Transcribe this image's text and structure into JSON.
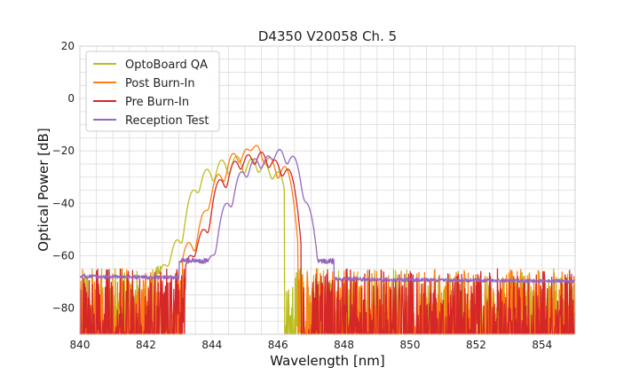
{
  "chart_data": {
    "type": "line",
    "title": "D4350 V20058 Ch. 5",
    "xlabel": "Wavelength [nm]",
    "ylabel": "Optical Power [dB]",
    "xlim": [
      840,
      855
    ],
    "ylim": [
      -90,
      20
    ],
    "xticks": [
      840,
      842,
      844,
      846,
      848,
      850,
      852,
      854
    ],
    "yticks": [
      20,
      0,
      -20,
      -40,
      -60,
      -80
    ],
    "grid": true,
    "legend_position": "top-left",
    "series": [
      {
        "name": "OptoBoard QA",
        "color": "#bcbd22",
        "noise_floor": -90,
        "peaks": [
          {
            "x": 842.55,
            "y": -63.5
          },
          {
            "x": 842.95,
            "y": -54
          },
          {
            "x": 843.45,
            "y": -35
          },
          {
            "x": 843.85,
            "y": -27
          },
          {
            "x": 844.3,
            "y": -23.5
          },
          {
            "x": 844.75,
            "y": -22
          },
          {
            "x": 845.2,
            "y": -23
          },
          {
            "x": 845.6,
            "y": -25
          },
          {
            "x": 846.0,
            "y": -28
          }
        ],
        "band": [
          842.3,
          846.2
        ]
      },
      {
        "name": "Post Burn-In",
        "color": "#ff7f0e",
        "noise_floor": -90,
        "peaks": [
          {
            "x": 843.3,
            "y": -55
          },
          {
            "x": 843.8,
            "y": -43
          },
          {
            "x": 844.2,
            "y": -29
          },
          {
            "x": 844.65,
            "y": -21
          },
          {
            "x": 845.05,
            "y": -19.5
          },
          {
            "x": 845.35,
            "y": -18
          },
          {
            "x": 845.75,
            "y": -22.5
          },
          {
            "x": 846.2,
            "y": -26
          }
        ],
        "band": [
          843.1,
          846.6
        ]
      },
      {
        "name": "Pre Burn-In",
        "color": "#d62728",
        "noise_floor": -90,
        "peaks": [
          {
            "x": 843.35,
            "y": -60
          },
          {
            "x": 843.75,
            "y": -50
          },
          {
            "x": 844.25,
            "y": -31
          },
          {
            "x": 844.7,
            "y": -24
          },
          {
            "x": 845.1,
            "y": -21.5
          },
          {
            "x": 845.5,
            "y": -20.5
          },
          {
            "x": 845.9,
            "y": -23.5
          },
          {
            "x": 846.3,
            "y": -27
          }
        ],
        "band": [
          843.2,
          846.7
        ]
      },
      {
        "name": "Reception Test",
        "color": "#9467bd",
        "noise_floor": -68,
        "peaks": [
          {
            "x": 844.0,
            "y": -60
          },
          {
            "x": 844.45,
            "y": -40
          },
          {
            "x": 844.9,
            "y": -28
          },
          {
            "x": 845.3,
            "y": -23
          },
          {
            "x": 845.7,
            "y": -22
          },
          {
            "x": 846.05,
            "y": -19.5
          },
          {
            "x": 846.45,
            "y": -22
          },
          {
            "x": 846.85,
            "y": -40
          }
        ],
        "band": [
          843.6,
          847.1
        ]
      }
    ]
  }
}
